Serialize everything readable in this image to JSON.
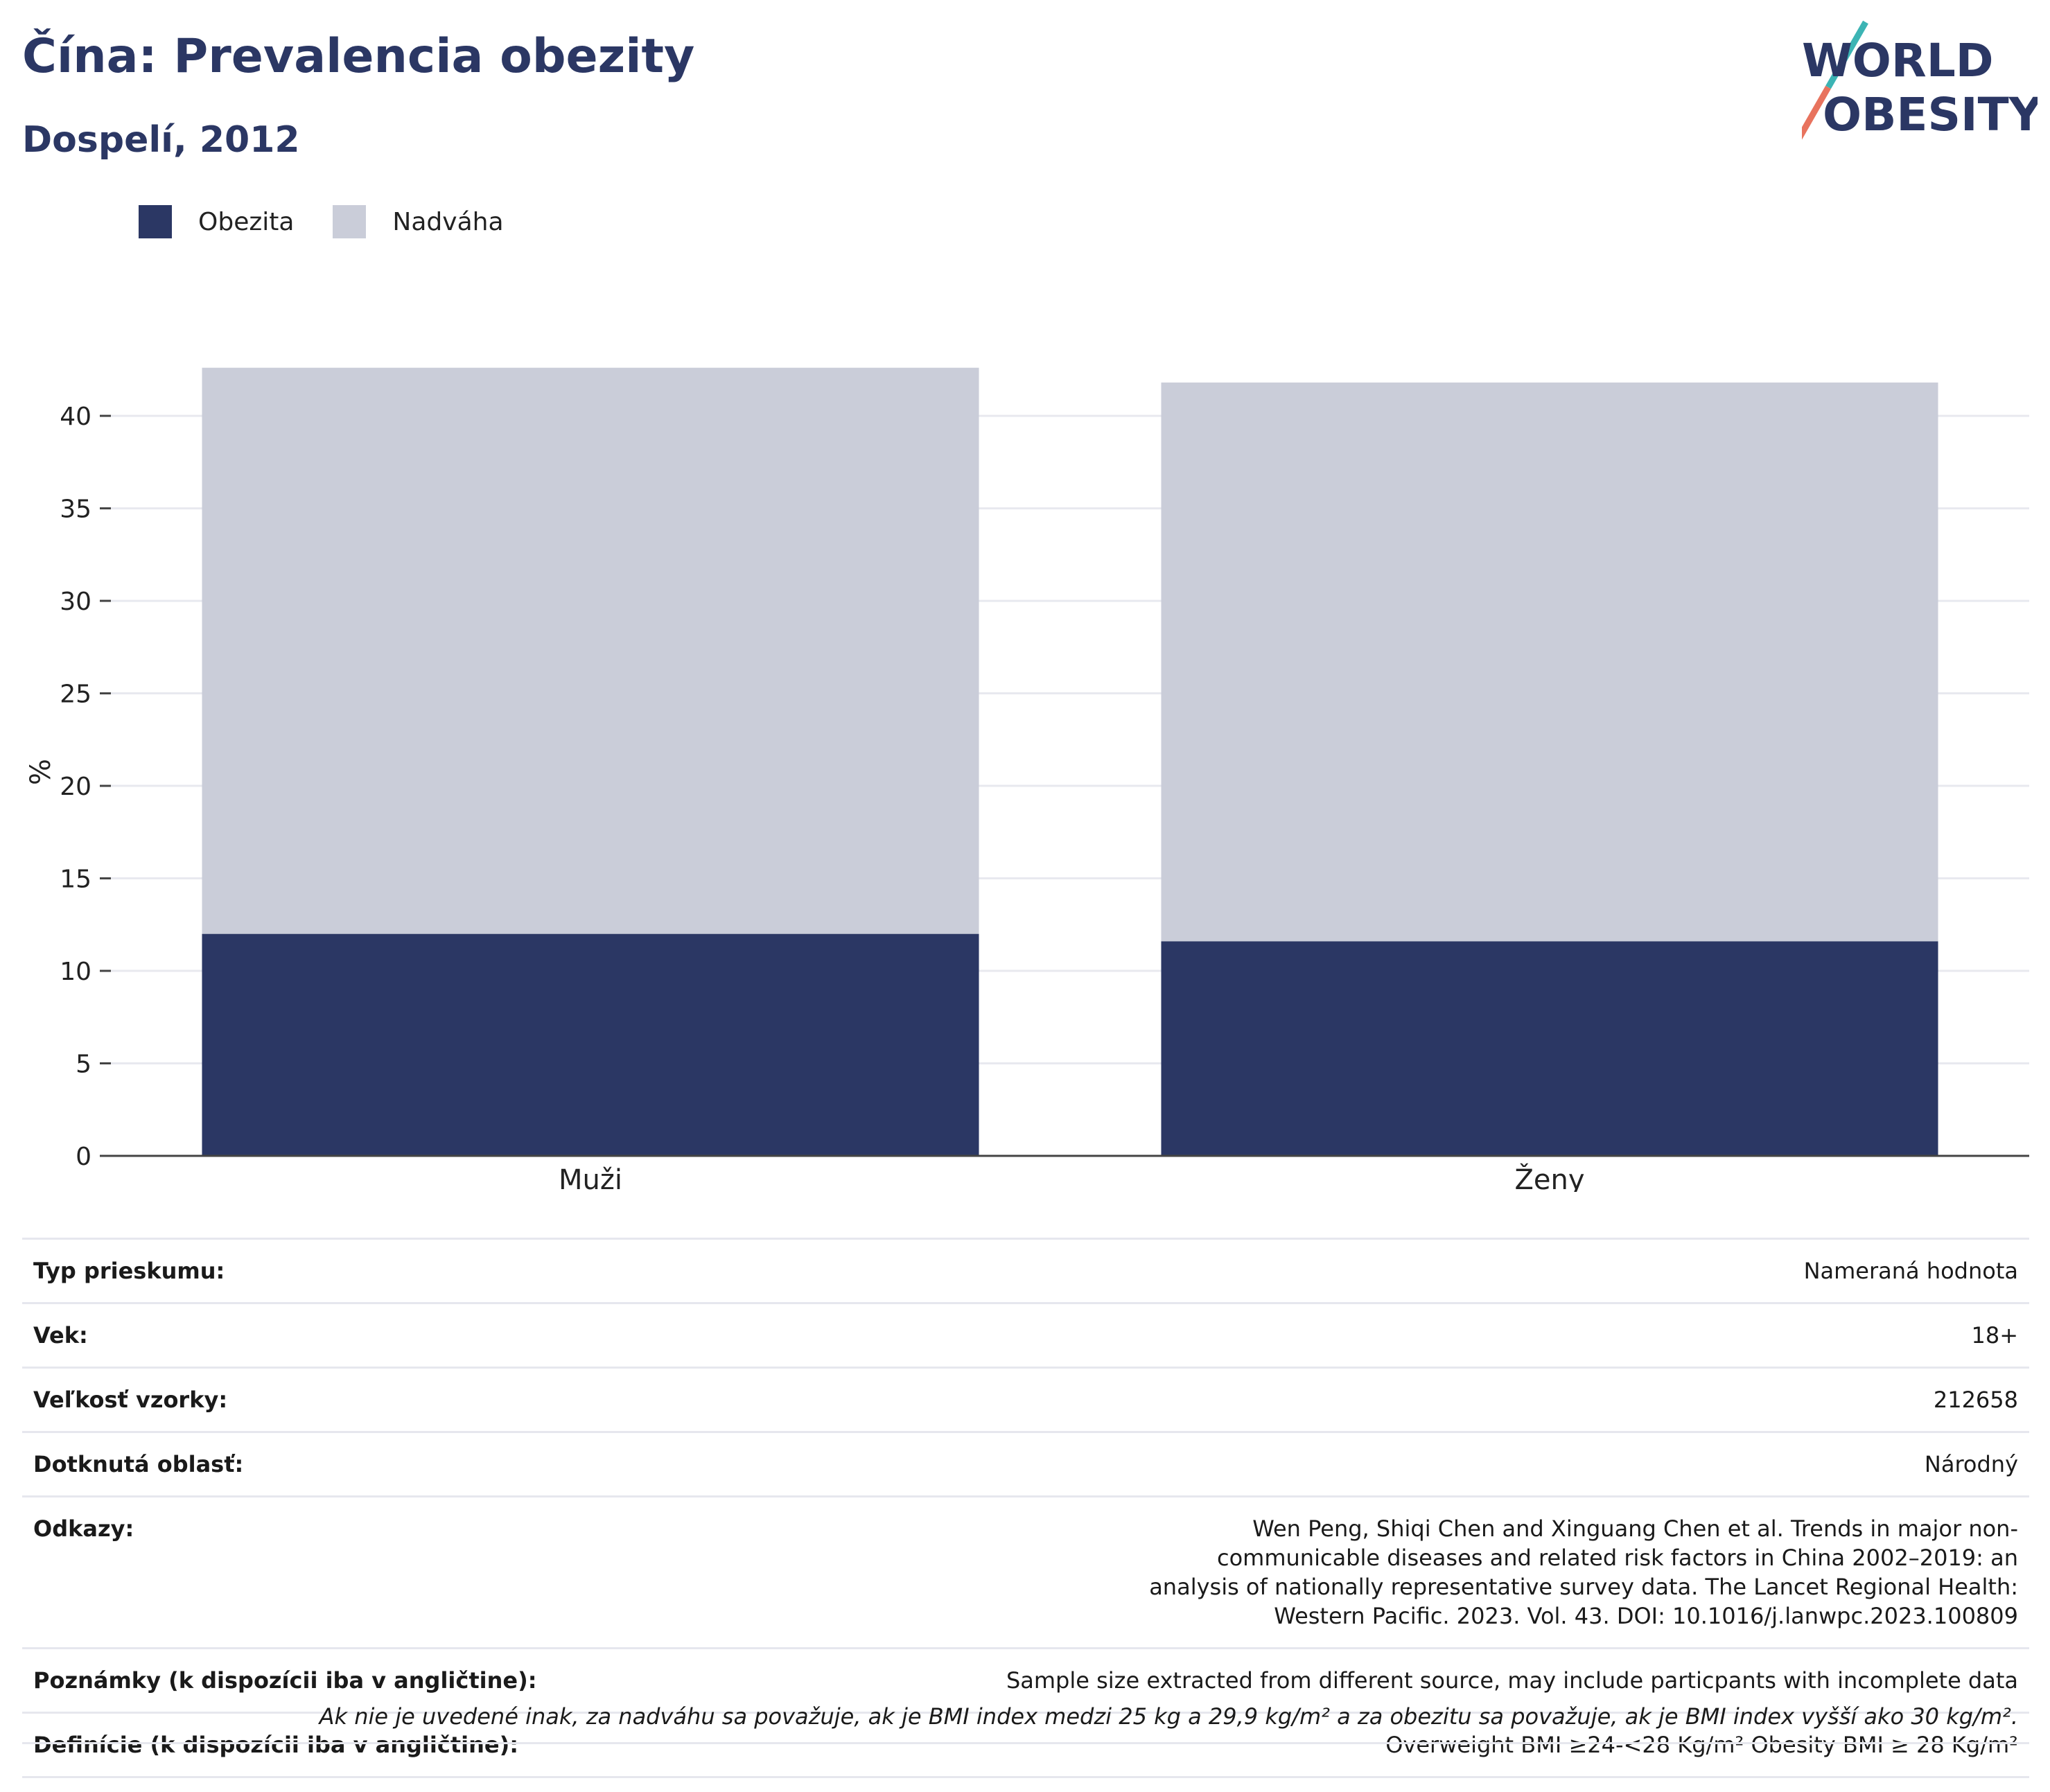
{
  "header": {
    "title": "Čína: Prevalencia obezity",
    "subtitle": "Dospelí, 2012"
  },
  "logo": {
    "line1": "WORLD",
    "line2": "OBESITY",
    "colors": {
      "text": "#2b3764",
      "slash_teal": "#3cb4b4",
      "slash_coral": "#e8735e"
    }
  },
  "legend": [
    {
      "label": "Obezita",
      "color": "#2b3764"
    },
    {
      "label": "Nadváha",
      "color": "#cacdd9"
    }
  ],
  "chart_data": {
    "type": "bar",
    "stacked": true,
    "categories": [
      "Muži",
      "Ženy"
    ],
    "series": [
      {
        "name": "Obezita",
        "color": "#2b3764",
        "values": [
          12.0,
          11.6
        ]
      },
      {
        "name": "Nadváha",
        "color": "#cacdd9",
        "values": [
          30.6,
          30.2
        ]
      }
    ],
    "ylabel": "%",
    "ylim": [
      0,
      43
    ],
    "yticks": [
      0,
      5,
      10,
      15,
      20,
      25,
      30,
      35,
      40
    ],
    "grid": true,
    "legend_position": "top-left"
  },
  "info": [
    {
      "label": "Typ prieskumu:",
      "value": "Nameraná hodnota"
    },
    {
      "label": "Vek:",
      "value": "18+"
    },
    {
      "label": "Veľkosť vzorky:",
      "value": "212658"
    },
    {
      "label": "Dotknutá oblasť:",
      "value": "Národný"
    },
    {
      "label": "Odkazy:",
      "value": "Wen Peng, Shiqi Chen and Xinguang Chen et al. Trends in major non-communicable diseases and related risk factors in China 2002–2019: an analysis of nationally representative survey data. The Lancet Regional Health: Western Pacific. 2023. Vol. 43. DOI: 10.1016/j.lanwpc.2023.100809"
    },
    {
      "label": "Poznámky (k dispozícii iba v angličtine):",
      "value": "Sample size extracted from different source, may include particpants with incomplete data"
    },
    {
      "label": "Definície (k dispozícii iba v angličtine):",
      "value": "Overweight BMI ≥24-<28 Kg/m² Obesity BMI ≥ 28 Kg/m²"
    }
  ],
  "footnote": "Ak nie je uvedené inak, za nadváhu sa považuje, ak je BMI index medzi 25 kg a 29,9 kg/m² a za obezitu sa považuje, ak je BMI index vyšší ako 30 kg/m²."
}
